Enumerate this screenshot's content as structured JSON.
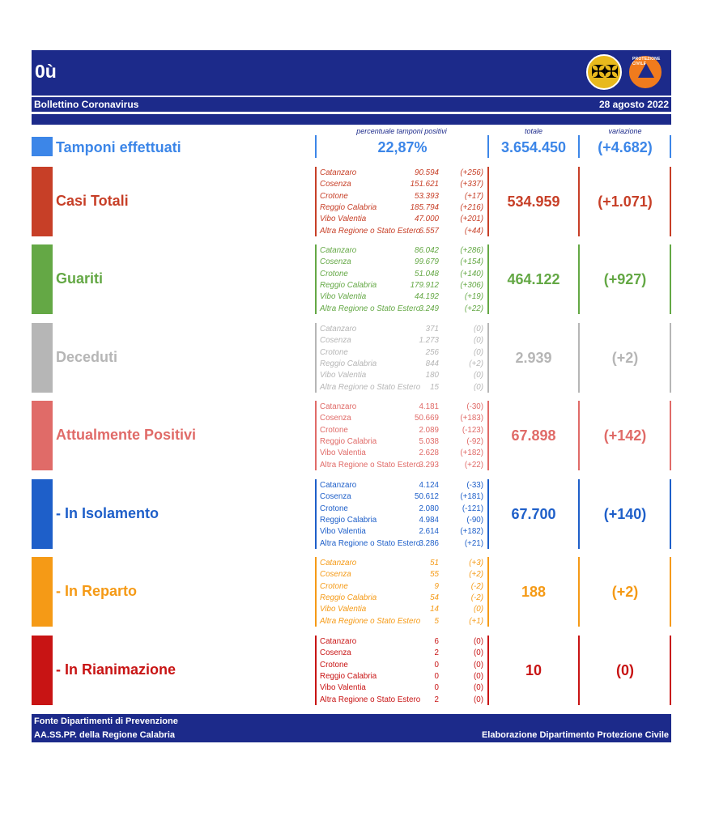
{
  "header": {
    "code": "0ù",
    "title": "Bollettino Coronavirus",
    "date": "28 agosto 2022",
    "logo_text": "PROTEZIONE CIVILE"
  },
  "columns": {
    "pct": "percentuale tamponi positivi",
    "total": "totale",
    "change": "variazione"
  },
  "tamponi": {
    "label": "Tamponi effettuati",
    "pct": "22,87%",
    "total": "3.654.450",
    "change": "(+4.682)",
    "color": "#3c86e8"
  },
  "blocks": [
    {
      "label": "Casi Totali",
      "color": "#c73f27",
      "regionStyle": "normal-italic",
      "total": "534.959",
      "change": "(+1.071)",
      "rows": [
        [
          "Catanzaro",
          "90.594",
          "(+256)"
        ],
        [
          "Cosenza",
          "151.621",
          "(+337)"
        ],
        [
          "Crotone",
          "53.393",
          "(+17)"
        ],
        [
          "Reggio Calabria",
          "185.794",
          "(+216)"
        ],
        [
          "Vibo Valentia",
          "47.000",
          "(+201)"
        ],
        [
          "Altra Regione o Stato Estero",
          "6.557",
          "(+44)"
        ]
      ]
    },
    {
      "label": "Guariti",
      "color": "#64a845",
      "regionStyle": "normal",
      "total": "464.122",
      "change": "(+927)",
      "rows": [
        [
          "Catanzaro",
          "86.042",
          "(+286)"
        ],
        [
          "Cosenza",
          "99.679",
          "(+154)"
        ],
        [
          "Crotone",
          "51.048",
          "(+140)"
        ],
        [
          "Reggio Calabria",
          "179.912",
          "(+306)"
        ],
        [
          "Vibo Valentia",
          "44.192",
          "(+19)"
        ],
        [
          "Altra Regione o Stato Estero",
          "3.249",
          "(+22)"
        ]
      ]
    },
    {
      "label": "Deceduti",
      "color": "#b6b6b6",
      "regionStyle": "normal",
      "total": "2.939",
      "change": "(+2)",
      "rows": [
        [
          "Catanzaro",
          "371",
          "(0)"
        ],
        [
          "Cosenza",
          "1.273",
          "(0)"
        ],
        [
          "Crotone",
          "256",
          "(0)"
        ],
        [
          "Reggio Calabria",
          "844",
          "(+2)"
        ],
        [
          "Vibo Valentia",
          "180",
          "(0)"
        ],
        [
          "Altra Regione o Stato Estero",
          "15",
          "(0)"
        ]
      ]
    },
    {
      "label": "Attualmente Positivi",
      "color": "#e06b68",
      "regionStyle": "normal",
      "total": "67.898",
      "change": "(+142)",
      "rows": [
        [
          "Catanzaro",
          "4.181",
          "(-30)"
        ],
        [
          "Cosenza",
          "50.669",
          "(+183)"
        ],
        [
          "Crotone",
          "2.089",
          "(-123)"
        ],
        [
          "Reggio Calabria",
          "5.038",
          "(-92)"
        ],
        [
          "Vibo Valentia",
          "2.628",
          "(+182)"
        ],
        [
          "Altra Regione o Stato Estero",
          "3.293",
          "(+22)"
        ]
      ]
    },
    {
      "label": "- In Isolamento",
      "color": "#1e5fc9",
      "regionStyle": "normal",
      "total": "67.700",
      "change": "(+140)",
      "rows": [
        [
          "Catanzaro",
          "4.124",
          "(-33)"
        ],
        [
          "Cosenza",
          "50.612",
          "(+181)"
        ],
        [
          "Crotone",
          "2.080",
          "(-121)"
        ],
        [
          "Reggio Calabria",
          "4.984",
          "(-90)"
        ],
        [
          "Vibo Valentia",
          "2.614",
          "(+182)"
        ],
        [
          "Altra Regione o Stato Estero",
          "3.286",
          "(+21)"
        ]
      ]
    },
    {
      "label": "- In Reparto",
      "color": "#f59a16",
      "regionStyle": "normal",
      "total": "188",
      "change": "(+2)",
      "rows": [
        [
          "Catanzaro",
          "51",
          "(+3)"
        ],
        [
          "Cosenza",
          "55",
          "(+2)"
        ],
        [
          "Crotone",
          "9",
          "(-2)"
        ],
        [
          "Reggio Calabria",
          "54",
          "(-2)"
        ],
        [
          "Vibo Valentia",
          "14",
          "(0)"
        ],
        [
          "Altra Regione o Stato Estero",
          "5",
          "(+1)"
        ]
      ]
    },
    {
      "label": "- In Rianimazione",
      "color": "#c81414",
      "regionStyle": "normal",
      "total": "10",
      "change": "(0)",
      "rows": [
        [
          "Catanzaro",
          "6",
          "(0)"
        ],
        [
          "Cosenza",
          "2",
          "(0)"
        ],
        [
          "Crotone",
          "0",
          "(0)"
        ],
        [
          "Reggio Calabria",
          "0",
          "(0)"
        ],
        [
          "Vibo Valentia",
          "0",
          "(0)"
        ],
        [
          "Altra Regione o Stato Estero",
          "2",
          "(0)"
        ]
      ]
    }
  ],
  "footer": {
    "line1": "Fonte Dipartimenti di Prevenzione",
    "line2": "AA.SS.PP.  della Regione Calabria",
    "right": "Elaborazione Dipartimento Protezione Civile"
  }
}
